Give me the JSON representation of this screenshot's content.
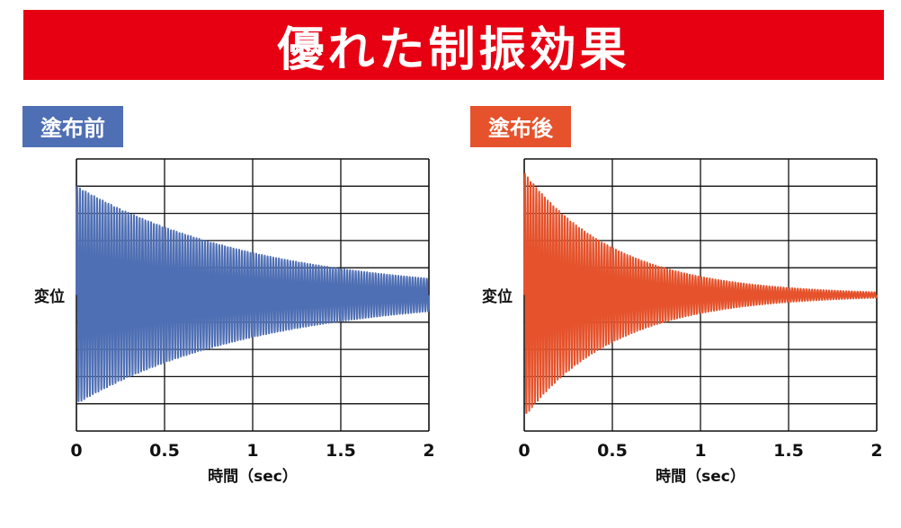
{
  "page": {
    "title": "優れた制振効果"
  },
  "colors": {
    "banner": "#e60012",
    "before": "#4f6fb4",
    "after": "#e5522b"
  },
  "chart_data": [
    {
      "type": "line",
      "title": "塗布前",
      "xlabel": "時間（sec）",
      "ylabel": "変位",
      "xlim": [
        0,
        2
      ],
      "ylim": [
        -1,
        1
      ],
      "xticks": [
        "0",
        "0.5",
        "1",
        "1.5",
        "2"
      ],
      "grid": true,
      "series": [
        {
          "color": "#4f6fb4",
          "signal": {
            "kind": "damped_sine",
            "amplitude": 0.8,
            "frequency_hz": 62,
            "envelope": "exponential",
            "final_amplitude": 0.12
          }
        }
      ]
    },
    {
      "type": "line",
      "title": "塗布後",
      "xlabel": "時間（sec）",
      "ylabel": "変位",
      "xlim": [
        0,
        2
      ],
      "ylim": [
        -1,
        1
      ],
      "xticks": [
        "0",
        "0.5",
        "1",
        "1.5",
        "2"
      ],
      "grid": true,
      "series": [
        {
          "color": "#e5522b",
          "signal": {
            "kind": "damped_sine",
            "amplitude": 0.9,
            "frequency_hz": 62,
            "envelope": "exponential",
            "final_amplitude": 0.02
          }
        }
      ]
    }
  ]
}
